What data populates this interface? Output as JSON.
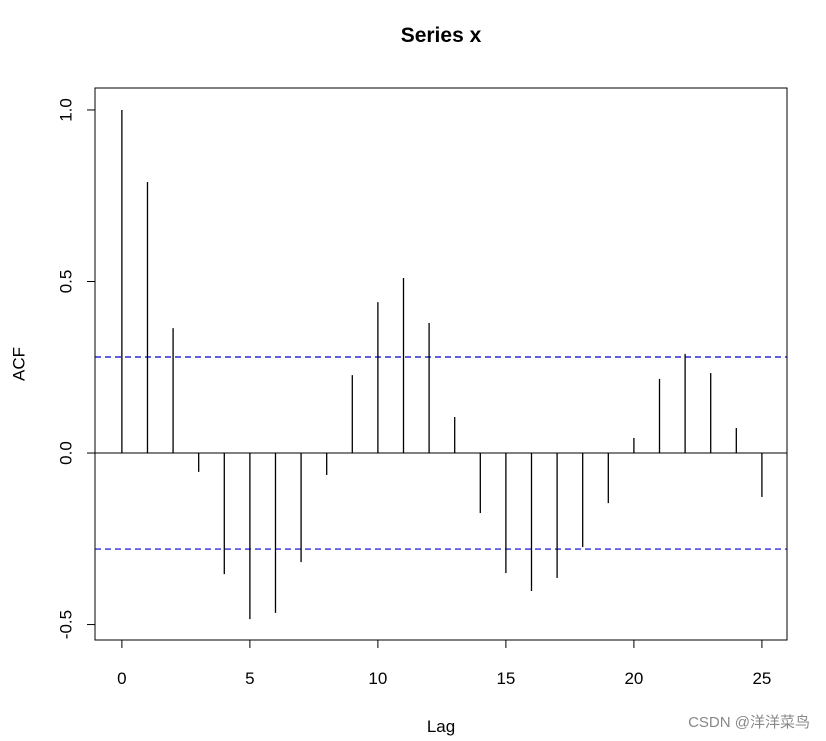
{
  "chart_data": {
    "type": "acf",
    "title": "Series  x",
    "x_label": "Lag",
    "y_label": "ACF",
    "x": [
      0,
      1,
      2,
      3,
      4,
      5,
      6,
      7,
      8,
      9,
      10,
      11,
      12,
      13,
      14,
      15,
      16,
      17,
      18,
      19,
      20,
      21,
      22,
      23,
      24,
      25
    ],
    "values": [
      1.0,
      0.79,
      0.364,
      -0.055,
      -0.353,
      -0.484,
      -0.466,
      -0.318,
      -0.064,
      0.227,
      0.44,
      0.51,
      0.379,
      0.105,
      -0.175,
      -0.35,
      -0.402,
      -0.364,
      -0.274,
      -0.146,
      0.044,
      0.216,
      0.289,
      0.233,
      0.073,
      -0.128
    ],
    "color": "#000000",
    "ci": [
      0.28,
      -0.28
    ],
    "ci_color": "#0000cc",
    "xlim": [
      -1.05,
      25.98
    ],
    "xticks": [
      0,
      5,
      10,
      15,
      20,
      25
    ],
    "ylim": [
      -0.545,
      1.064
    ],
    "yticks": [
      -0.5,
      {
        "value": 0,
        "label": "0.0"
      },
      0.5,
      {
        "value": 1,
        "label": "1.0"
      }
    ],
    "watermark": "CSDN @洋洋菜鸟"
  }
}
